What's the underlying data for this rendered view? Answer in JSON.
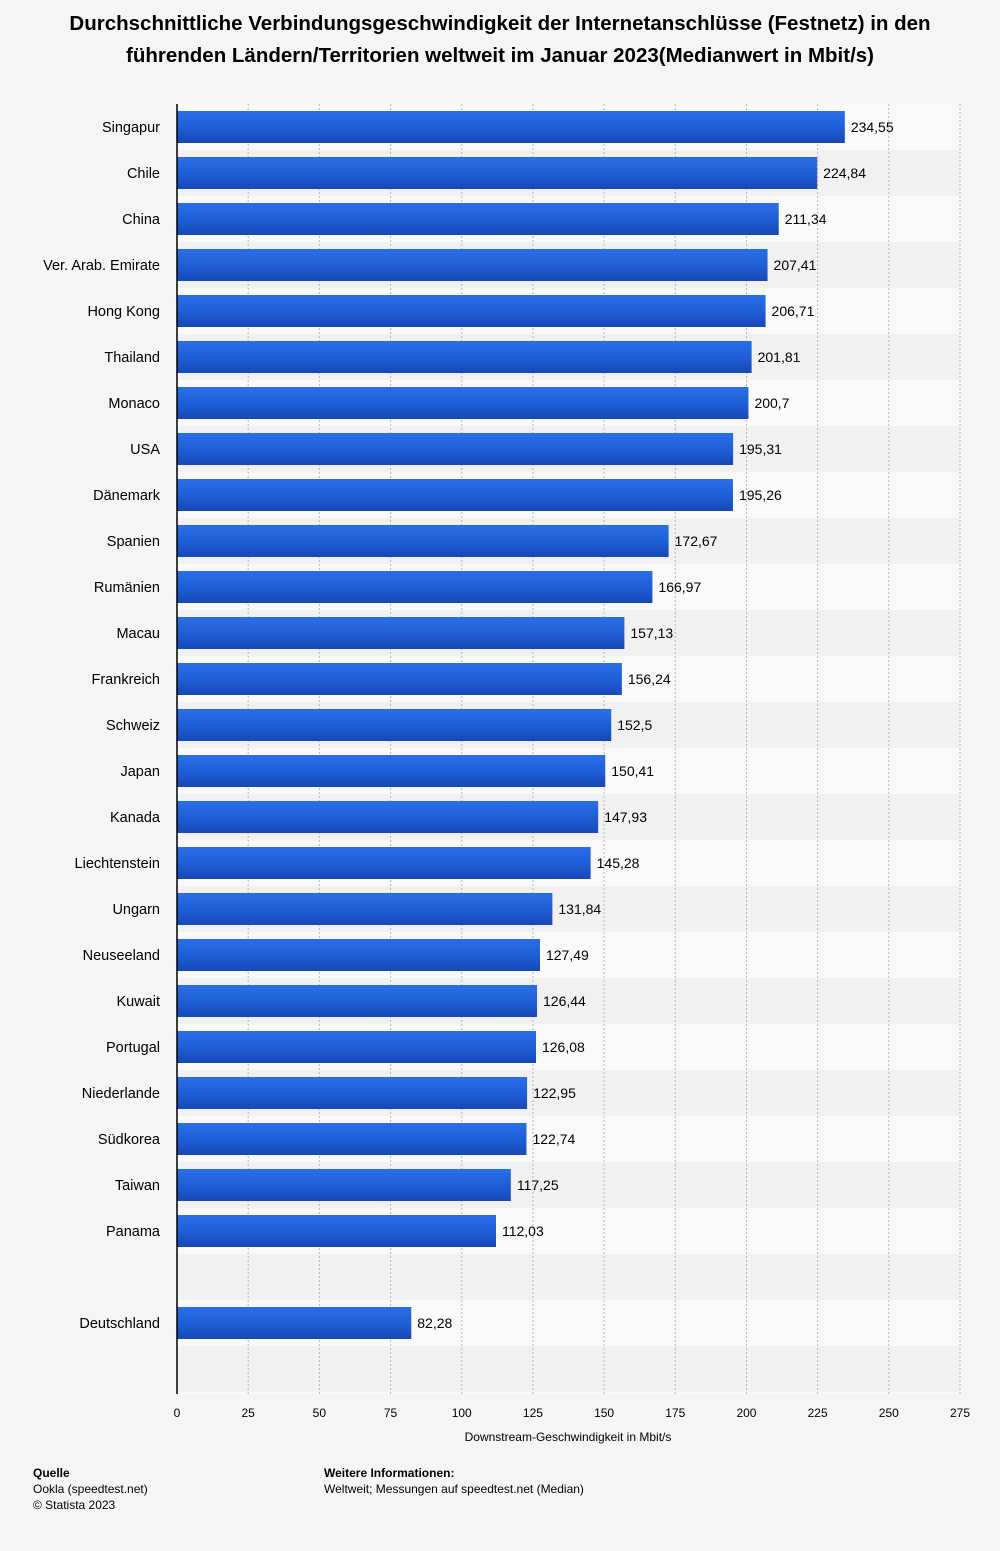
{
  "chart_data": {
    "type": "bar",
    "orientation": "horizontal",
    "title": "Durchschnittliche Verbindungsgeschwindigkeit der Internetanschlüsse (Festnetz) in den führenden Ländern/Territorien weltweit im Januar 2023(Medianwert in Mbit/s)",
    "xlabel": "Downstream-Geschwindigkeit in Mbit/s",
    "ylabel": "",
    "xlim": [
      0,
      275
    ],
    "xticks": [
      "0",
      "25",
      "50",
      "75",
      "100",
      "125",
      "150",
      "175",
      "200",
      "225",
      "250",
      "275"
    ],
    "grid": "vertical dashed",
    "bar_color": "#1f5fd6",
    "categories": [
      "Singapur",
      "Chile",
      "China",
      "Ver. Arab. Emirate",
      "Hong Kong",
      "Thailand",
      "Monaco",
      "USA",
      "Dänemark",
      "Spanien",
      "Rumänien",
      "Macau",
      "Frankreich",
      "Schweiz",
      "Japan",
      "Kanada",
      "Liechtenstein",
      "Ungarn",
      "Neuseeland",
      "Kuwait",
      "Portugal",
      "Niederlande",
      "Südkorea",
      "Taiwan",
      "Panama",
      "",
      "Deutschland"
    ],
    "values": [
      234.55,
      224.84,
      211.34,
      207.41,
      206.71,
      201.81,
      200.7,
      195.31,
      195.26,
      172.67,
      166.97,
      157.13,
      156.24,
      152.5,
      150.41,
      147.93,
      145.28,
      131.84,
      127.49,
      126.44,
      126.08,
      122.95,
      122.74,
      117.25,
      112.03,
      null,
      82.28
    ],
    "value_labels": [
      "234,55",
      "224,84",
      "211,34",
      "207,41",
      "206,71",
      "201,81",
      "200,7",
      "195,31",
      "195,26",
      "172,67",
      "166,97",
      "157,13",
      "156,24",
      "152,5",
      "150,41",
      "147,93",
      "145,28",
      "131,84",
      "127,49",
      "126,44",
      "126,08",
      "122,95",
      "122,74",
      "117,25",
      "112,03",
      "",
      "82,28"
    ]
  },
  "footer": {
    "source_heading": "Quelle",
    "source_line1": "Ookla (speedtest.net)",
    "source_line2": "© Statista 2023",
    "info_heading": "Weitere Informationen:",
    "info_text": "Weltweit; Messungen auf speedtest.net (Median)"
  }
}
